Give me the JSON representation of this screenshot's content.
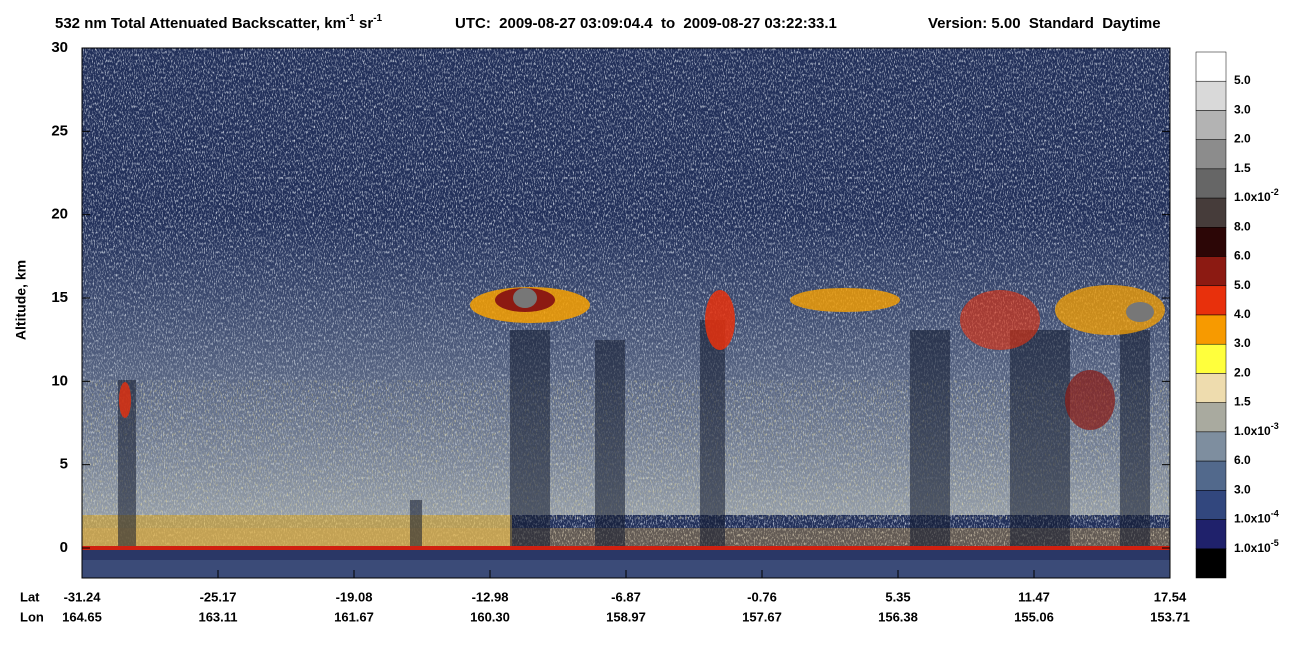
{
  "chart_data": {
    "type": "curtain",
    "title": {
      "segments": [
        "532 nm Total Attenuated Backscatter, km",
        "-1",
        " sr",
        "-1"
      ],
      "utc": "UTC:  2009-08-27 03:09:04.4  to  2009-08-27 03:22:33.1",
      "version": "Version: 5.00  Standard  Daytime"
    },
    "y_label": "Altitude, km",
    "ylim": [
      -1.8,
      30
    ],
    "yticks": [
      0,
      5,
      10,
      15,
      20,
      25,
      30
    ],
    "x_rows": [
      {
        "name": "Lat",
        "labels": [
          "-31.24",
          "-25.17",
          "-19.08",
          "-12.98",
          "-6.87",
          "-0.76",
          "5.35",
          "11.47",
          "17.54"
        ]
      },
      {
        "name": "Lon",
        "labels": [
          "164.65",
          "163.11",
          "161.67",
          "160.30",
          "158.97",
          "157.67",
          "156.38",
          "155.06",
          "153.71"
        ]
      }
    ],
    "colorbar": {
      "colors": [
        "#ffffff",
        "#d9d9d9",
        "#b3b3b3",
        "#8c8c8c",
        "#666666",
        "#463c3a",
        "#2c0606",
        "#8c1a12",
        "#e8300c",
        "#f79a00",
        "#ffff3c",
        "#eedcae",
        "#a9aa9f",
        "#7e8e9f",
        "#52698c",
        "#32477e",
        "#1f216b",
        "#000000"
      ],
      "labels": [
        {
          "text": "5.0"
        },
        {
          "text": "3.0"
        },
        {
          "text": "2.0"
        },
        {
          "text": "1.5"
        },
        {
          "text": "1.0x10",
          "sup": "-2"
        },
        {
          "text": "8.0"
        },
        {
          "text": "6.0"
        },
        {
          "text": "5.0"
        },
        {
          "text": "4.0"
        },
        {
          "text": "3.0"
        },
        {
          "text": "2.0"
        },
        {
          "text": "1.5"
        },
        {
          "text": "1.0x10",
          "sup": "-3"
        },
        {
          "text": "6.0"
        },
        {
          "text": "3.0"
        },
        {
          "text": "1.0x10",
          "sup": "-4"
        },
        {
          "text": "1.0x10",
          "sup": "-5"
        }
      ]
    }
  }
}
